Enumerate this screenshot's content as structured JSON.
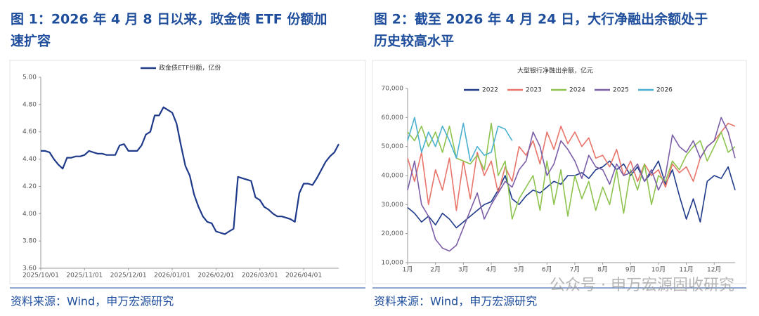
{
  "watermark": "公众号 · 申万宏源固收研究",
  "chart_data": [
    {
      "type": "line",
      "caption": [
        "图 1：2026 年 4 月 8 日以来，政金债 ETF 份额加",
        "速扩容"
      ],
      "source": "资料来源：Wind，申万宏源研究",
      "categories": [
        "2025/10/01",
        null,
        null,
        null,
        null,
        null,
        null,
        null,
        null,
        null,
        "2025/11/01",
        null,
        null,
        null,
        null,
        null,
        null,
        null,
        null,
        null,
        "2025/12/01",
        null,
        null,
        null,
        null,
        null,
        null,
        null,
        null,
        null,
        "2026/01/01",
        null,
        null,
        null,
        null,
        null,
        null,
        null,
        null,
        null,
        "2026/02/01",
        null,
        null,
        null,
        null,
        null,
        null,
        null,
        null,
        null,
        "2026/03/01",
        null,
        null,
        null,
        null,
        null,
        null,
        null,
        null,
        null,
        "2026/04/01",
        null,
        null,
        null,
        null,
        null,
        null,
        null,
        null
      ],
      "series": [
        {
          "name": "政金债ETF份额，亿份",
          "color": "#1f3a8a",
          "values": [
            4.46,
            4.46,
            4.45,
            4.4,
            4.36,
            4.33,
            4.41,
            4.41,
            4.42,
            4.42,
            4.43,
            4.46,
            4.45,
            4.44,
            4.44,
            4.43,
            4.43,
            4.43,
            4.5,
            4.51,
            4.46,
            4.46,
            4.46,
            4.5,
            4.58,
            4.6,
            4.72,
            4.72,
            4.78,
            4.76,
            4.74,
            4.66,
            4.5,
            4.35,
            4.28,
            4.14,
            4.05,
            3.98,
            3.94,
            3.93,
            3.87,
            3.86,
            3.85,
            3.87,
            3.89,
            4.27,
            4.26,
            4.25,
            4.24,
            4.12,
            4.1,
            4.05,
            4.03,
            4.0,
            3.98,
            3.98,
            3.97,
            3.96,
            3.94,
            4.15,
            4.22,
            4.22,
            4.21,
            4.26,
            4.32,
            4.38,
            4.42,
            4.45,
            4.51
          ]
        }
      ],
      "ylim": [
        3.6,
        5.0
      ],
      "yticks": [
        {
          "value": 3.6,
          "label": "3.60"
        },
        {
          "value": 3.8,
          "label": "3.80"
        },
        {
          "value": 4.0,
          "label": "4.00"
        },
        {
          "value": 4.2,
          "label": "4.20"
        },
        {
          "value": 4.4,
          "label": "4.40"
        },
        {
          "value": 4.6,
          "label": "4.60"
        },
        {
          "value": 4.8,
          "label": "4.80"
        },
        {
          "value": 5.0,
          "label": "5.00"
        }
      ]
    },
    {
      "type": "line",
      "caption": [
        "图 2：截至 2026 年 4 月 24 日，大行净融出余额处于",
        "历史较高水平"
      ],
      "source": "资料来源：Wind，申万宏源研究",
      "title": "大型银行净融出余额，亿元",
      "categories": [
        "1月",
        null,
        null,
        null,
        "2月",
        null,
        null,
        null,
        "3月",
        null,
        null,
        null,
        "4月",
        null,
        null,
        null,
        "5月",
        null,
        null,
        null,
        "6月",
        null,
        null,
        null,
        "7月",
        null,
        null,
        null,
        "8月",
        null,
        null,
        null,
        "9月",
        null,
        null,
        null,
        "10月",
        null,
        null,
        null,
        "11月",
        null,
        null,
        null,
        "12月",
        null,
        null,
        null
      ],
      "series": [
        {
          "name": "2022",
          "color": "#1f3a8a",
          "values": [
            29000,
            27000,
            24000,
            26000,
            23000,
            27000,
            25000,
            22000,
            24000,
            26000,
            28000,
            30000,
            31000,
            35000,
            40000,
            32000,
            30000,
            33000,
            35000,
            34000,
            36000,
            38000,
            37000,
            40000,
            40000,
            41000,
            39000,
            42000,
            43000,
            45000,
            42000,
            44000,
            40000,
            43000,
            38000,
            41000,
            45000,
            37000,
            42000,
            33000,
            25000,
            32000,
            24000,
            38000,
            40000,
            39000,
            43000,
            35000
          ]
        },
        {
          "name": "2023",
          "color": "#e8746a",
          "values": [
            46000,
            38000,
            48000,
            30000,
            42000,
            35000,
            46000,
            28000,
            45000,
            32000,
            48000,
            40000,
            45000,
            34000,
            43000,
            38000,
            50000,
            47000,
            52000,
            44000,
            55000,
            49000,
            57000,
            51000,
            55000,
            50000,
            53000,
            46000,
            47000,
            43000,
            49000,
            40000,
            45000,
            38000,
            44000,
            40000,
            42000,
            36000,
            44000,
            41000,
            43000,
            38000,
            46000,
            50000,
            52000,
            55000,
            58000,
            57000
          ]
        },
        {
          "name": "2024",
          "color": "#8dc34e",
          "values": [
            55000,
            52000,
            57000,
            50000,
            55000,
            48000,
            57000,
            46000,
            45000,
            44000,
            47000,
            42000,
            58000,
            40000,
            45000,
            25000,
            32000,
            36000,
            40000,
            28000,
            45000,
            30000,
            42000,
            26000,
            40000,
            32000,
            38000,
            28000,
            36000,
            30000,
            42000,
            27000,
            42000,
            35000,
            44000,
            30000,
            40000,
            38000,
            45000,
            42000,
            47000,
            50000,
            52000,
            45000,
            50000,
            55000,
            48000,
            50000
          ]
        },
        {
          "name": "2025",
          "color": "#7b5ea8",
          "values": [
            35000,
            45000,
            30000,
            26000,
            18000,
            15000,
            14000,
            16000,
            22000,
            28000,
            34000,
            25000,
            30000,
            34000,
            38000,
            36000,
            42000,
            45000,
            55000,
            50000,
            40000,
            44000,
            52000,
            49000,
            45000,
            39000,
            47000,
            43000,
            42000,
            37000,
            44000,
            40000,
            41000,
            44000,
            38000,
            42000,
            35000,
            40000,
            54000,
            50000,
            48000,
            52000,
            46000,
            50000,
            52000,
            60000,
            55000,
            46000
          ]
        },
        {
          "name": "2026",
          "color": "#4ab0d0",
          "values": [
            52000,
            60000,
            48000,
            55000,
            50000,
            57000,
            52000,
            46000,
            58000,
            45000,
            50000,
            47000,
            48000,
            57000,
            56000,
            52000,
            null,
            null,
            null,
            null,
            null,
            null,
            null,
            null,
            null,
            null,
            null,
            null,
            null,
            null,
            null,
            null,
            null,
            null,
            null,
            null,
            null,
            null,
            null,
            null,
            null,
            null,
            null,
            null,
            null,
            null,
            null,
            null
          ]
        }
      ],
      "ylim": [
        10000,
        70000
      ],
      "yticks": [
        {
          "value": 10000,
          "label": "10,000"
        },
        {
          "value": 20000,
          "label": "20,000"
        },
        {
          "value": 30000,
          "label": "30,000"
        },
        {
          "value": 40000,
          "label": "40,000"
        },
        {
          "value": 50000,
          "label": "50,000"
        },
        {
          "value": 60000,
          "label": "60,000"
        },
        {
          "value": 70000,
          "label": "70,000"
        }
      ]
    }
  ]
}
